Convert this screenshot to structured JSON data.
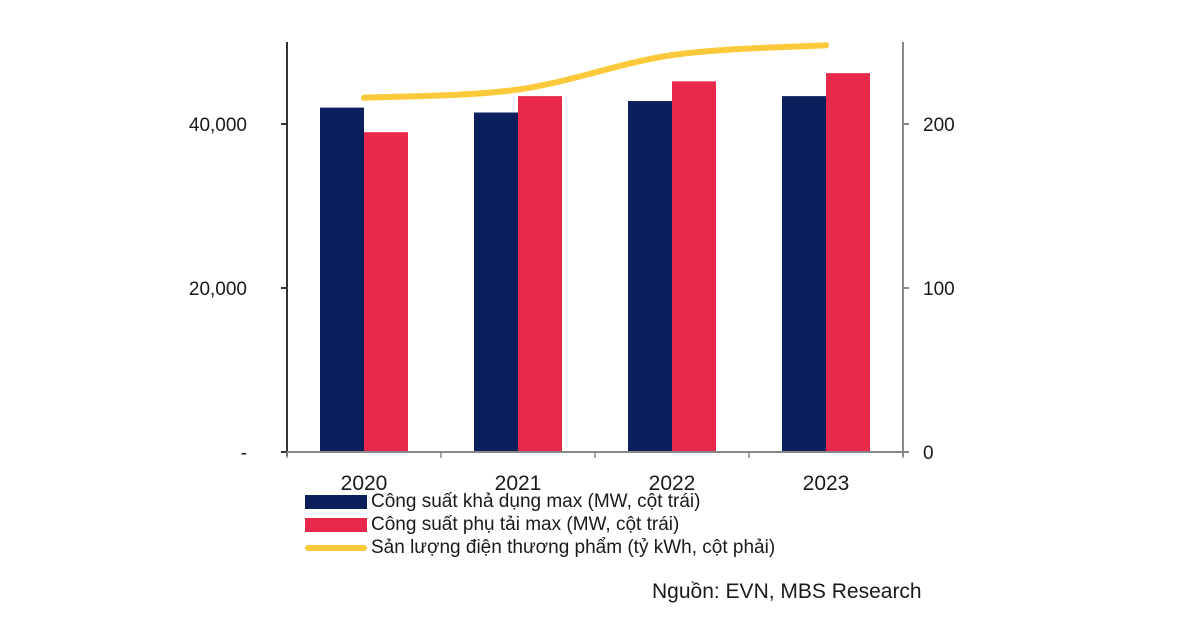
{
  "chart_data": {
    "type": "bar",
    "title": "",
    "categories": [
      "2020",
      "2021",
      "2022",
      "2023"
    ],
    "series": [
      {
        "name": "Công suất khả dụng max (MW, cột trái)",
        "type": "bar",
        "axis": "left",
        "color": "#0b1f5c",
        "values": [
          42000,
          41400,
          42800,
          43400
        ]
      },
      {
        "name": "Công suất phụ tải max (MW, cột trái)",
        "type": "bar",
        "axis": "left",
        "color": "#e8294b",
        "values": [
          39000,
          43400,
          45200,
          46200
        ]
      },
      {
        "name": "Sản lượng điện thương phẩm (tỷ kWh, cột phải)",
        "type": "line",
        "axis": "right",
        "color": "#fcc93a",
        "values": [
          216,
          221,
          242,
          248
        ]
      }
    ],
    "y_left": {
      "ylim": [
        0,
        50000
      ],
      "ticks": [
        0,
        20000,
        40000
      ],
      "tick_labels": [
        "-",
        "20,000",
        "40,000"
      ]
    },
    "y_right": {
      "ylim": [
        0,
        250
      ],
      "ticks": [
        0,
        100,
        200
      ],
      "tick_labels": [
        "0",
        "100",
        "200"
      ]
    },
    "xlabel": "",
    "ylabel": "",
    "grid": false,
    "legend": "bottom"
  },
  "legend": [
    {
      "label": "Công suất khả dụng max (MW, cột trái)",
      "color": "#0b1f5c",
      "kind": "bar"
    },
    {
      "label": "Công suất phụ tải max (MW, cột trái)",
      "color": "#e8294b",
      "kind": "bar"
    },
    {
      "label": "Sản lượng điện thương phẩm (tỷ kWh, cột phải)",
      "color": "#fcc93a",
      "kind": "line"
    }
  ],
  "source": "Nguồn: EVN, MBS Research"
}
